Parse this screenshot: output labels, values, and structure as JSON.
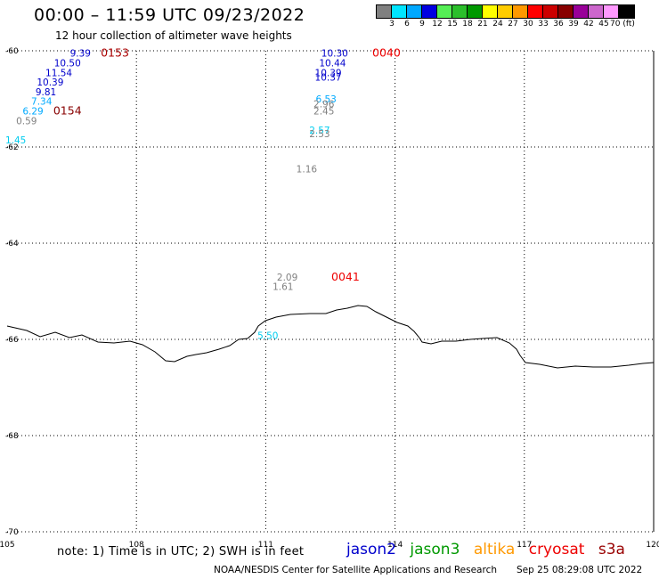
{
  "header": {
    "title": "00:00 – 11:59 UTC 09/23/2022",
    "subtitle": "12 hour collection of altimeter wave heights"
  },
  "legend": {
    "colors": [
      "#808080",
      "#00e5ff",
      "#00a8ff",
      "#0000e0",
      "#55ee55",
      "#2bbf2b",
      "#009900",
      "#ffff00",
      "#ffcc00",
      "#ff9900",
      "#ff0000",
      "#cc0000",
      "#880000",
      "#990099",
      "#cc66cc",
      "#ff99ff",
      "#000000"
    ],
    "labels": [
      "3",
      "6",
      "9",
      "12",
      "15",
      "18",
      "21",
      "24",
      "27",
      "30",
      "33",
      "36",
      "39",
      "42",
      "45",
      "70 (ft)"
    ]
  },
  "map": {
    "lon_range": [
      105,
      120
    ],
    "lat_range": [
      -60,
      -70
    ],
    "lon_ticks": [
      "105",
      "108",
      "111",
      "114",
      "117",
      "120"
    ],
    "lat_ticks": [
      "-60",
      "-62",
      "-64",
      "-66",
      "-68",
      "-70"
    ],
    "coast_color": "#000000",
    "observations": [
      {
        "text": "9.39",
        "color": "#0000cc",
        "lon": 106.7,
        "lat": -60.05
      },
      {
        "text": "10.50",
        "color": "#0000cc",
        "lon": 106.4,
        "lat": -60.25
      },
      {
        "text": "11.54",
        "color": "#0000cc",
        "lon": 106.2,
        "lat": -60.45
      },
      {
        "text": "10.39",
        "color": "#0000cc",
        "lon": 106.0,
        "lat": -60.65
      },
      {
        "text": "9.81",
        "color": "#0000cc",
        "lon": 105.9,
        "lat": -60.85
      },
      {
        "text": "7.34",
        "color": "#00aaff",
        "lon": 105.8,
        "lat": -61.05
      },
      {
        "text": "6.29",
        "color": "#00aaff",
        "lon": 105.6,
        "lat": -61.25
      },
      {
        "text": "0.59",
        "color": "#808080",
        "lon": 105.45,
        "lat": -61.45
      },
      {
        "text": "1.45",
        "color": "#00ccee",
        "lon": 105.2,
        "lat": -61.85
      },
      {
        "text": "10.30",
        "color": "#0000cc",
        "lon": 112.6,
        "lat": -60.05
      },
      {
        "text": "10.44",
        "color": "#0000cc",
        "lon": 112.55,
        "lat": -60.25
      },
      {
        "text": "10.39",
        "color": "#0000cc",
        "lon": 112.45,
        "lat": -60.45
      },
      {
        "text": "10.37",
        "color": "#0000cc",
        "lon": 112.45,
        "lat": -60.55
      },
      {
        "text": "6.53",
        "color": "#00aaff",
        "lon": 112.4,
        "lat": -61.0
      },
      {
        "text": "2.96",
        "color": "#808080",
        "lon": 112.35,
        "lat": -61.1
      },
      {
        "text": "2.45",
        "color": "#808080",
        "lon": 112.35,
        "lat": -61.25
      },
      {
        "text": "2.57",
        "color": "#00ccee",
        "lon": 112.25,
        "lat": -61.65
      },
      {
        "text": "2.53",
        "color": "#808080",
        "lon": 112.25,
        "lat": -61.72
      },
      {
        "text": "1.16",
        "color": "#808080",
        "lon": 111.95,
        "lat": -62.45
      },
      {
        "text": "2.09",
        "color": "#808080",
        "lon": 111.5,
        "lat": -64.7
      },
      {
        "text": "1.61",
        "color": "#808080",
        "lon": 111.4,
        "lat": -64.9
      },
      {
        "text": "5.50",
        "color": "#00ccee",
        "lon": 111.05,
        "lat": -65.92
      }
    ],
    "time_labels": [
      {
        "text": "0153",
        "color": "#aa0000",
        "lon": 107.5,
        "lat": -60.05
      },
      {
        "text": "0154",
        "color": "#880000",
        "lon": 106.4,
        "lat": -61.25
      },
      {
        "text": "0040",
        "color": "#ee0000",
        "lon": 113.8,
        "lat": -60.05
      },
      {
        "text": "0041",
        "color": "#ee0000",
        "lon": 112.85,
        "lat": -64.7
      }
    ]
  },
  "footer": {
    "note": "note: 1) Time is in UTC; 2) SWH is in feet",
    "satellites": [
      {
        "name": "jason2",
        "color": "#0000cc"
      },
      {
        "name": "jason3",
        "color": "#009900"
      },
      {
        "name": "altika",
        "color": "#ff9900"
      },
      {
        "name": "cryosat",
        "color": "#ee0000"
      },
      {
        "name": "s3a",
        "color": "#990000"
      }
    ],
    "credit": "NOAA/NESDIS Center for Satellite Applications and Research",
    "timestamp": "Sep 25 08:29:08 UTC 2022"
  }
}
